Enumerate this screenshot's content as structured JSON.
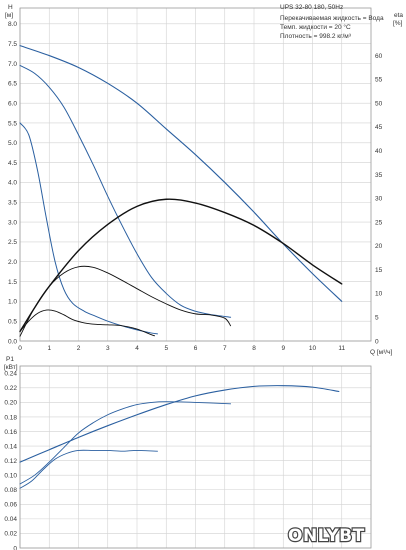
{
  "chart_data": [
    {
      "type": "line",
      "title": "UPS 32-80 180, 50Hz",
      "info_lines": [
        "Перекачиваемая жидкость = Вода",
        "Темп. жидкости = 20 °C",
        "Плотность = 998.2 кг/м³"
      ],
      "y_label_line1": "H",
      "y_label_line2": "[м]",
      "y2_label_line1": "eta",
      "y2_label_line2": "[%]",
      "x_label": "Q [м³/ч]",
      "xlim": [
        0,
        12
      ],
      "ylim": [
        0,
        8.4
      ],
      "y2lim": [
        0,
        70
      ],
      "x_ticks": [
        "0",
        "1",
        "2",
        "3",
        "4",
        "5",
        "6",
        "7",
        "8",
        "9",
        "10",
        "11"
      ],
      "y_ticks": [
        "0.0",
        "0.5",
        "1.0",
        "1.5",
        "2.0",
        "2.5",
        "3.0",
        "3.5",
        "4.0",
        "4.5",
        "5.0",
        "5.5",
        "6.0",
        "6.5",
        "7.0",
        "7.5",
        "8.0"
      ],
      "y2_ticks": [
        "0",
        "5",
        "10",
        "15",
        "20",
        "25",
        "30",
        "35",
        "40",
        "45",
        "50",
        "55",
        "60"
      ],
      "series": [
        {
          "axis": "H",
          "color": "#2a5fa0",
          "width": 1.1,
          "points": [
            [
              0,
              7.45
            ],
            [
              1,
              7.2
            ],
            [
              2,
              6.9
            ],
            [
              3,
              6.5
            ],
            [
              4,
              6.0
            ],
            [
              5,
              5.35
            ],
            [
              6,
              4.7
            ],
            [
              7,
              4.0
            ],
            [
              8,
              3.25
            ],
            [
              9,
              2.45
            ],
            [
              10,
              1.7
            ],
            [
              11,
              1.0
            ]
          ]
        },
        {
          "axis": "H",
          "color": "#2a5fa0",
          "width": 1.0,
          "points": [
            [
              0,
              6.95
            ],
            [
              0.5,
              6.75
            ],
            [
              1,
              6.4
            ],
            [
              1.5,
              5.9
            ],
            [
              2,
              5.2
            ],
            [
              2.5,
              4.45
            ],
            [
              3,
              3.65
            ],
            [
              3.5,
              2.9
            ],
            [
              4,
              2.2
            ],
            [
              4.5,
              1.6
            ],
            [
              5,
              1.2
            ],
            [
              5.5,
              0.9
            ],
            [
              6,
              0.75
            ],
            [
              6.5,
              0.67
            ],
            [
              7.2,
              0.6
            ]
          ]
        },
        {
          "axis": "H",
          "color": "#2a5fa0",
          "width": 1.0,
          "points": [
            [
              0,
              5.5
            ],
            [
              0.3,
              5.2
            ],
            [
              0.6,
              4.3
            ],
            [
              0.9,
              3.1
            ],
            [
              1.2,
              2.0
            ],
            [
              1.5,
              1.3
            ],
            [
              1.8,
              0.95
            ],
            [
              2.2,
              0.75
            ],
            [
              2.6,
              0.62
            ],
            [
              3,
              0.5
            ],
            [
              3.5,
              0.38
            ],
            [
              4,
              0.28
            ],
            [
              4.5,
              0.2
            ],
            [
              4.7,
              0.18
            ]
          ]
        },
        {
          "axis": "eta",
          "color": "#111111",
          "width": 1.4,
          "points": [
            [
              0,
              2
            ],
            [
              0.5,
              7
            ],
            [
              1,
              11.5
            ],
            [
              2,
              19
            ],
            [
              3,
              24.5
            ],
            [
              4,
              28.3
            ],
            [
              5,
              29.8
            ],
            [
              6,
              29
            ],
            [
              7,
              27
            ],
            [
              8,
              24.3
            ],
            [
              9,
              20.5
            ],
            [
              10,
              16
            ],
            [
              11,
              12
            ]
          ]
        },
        {
          "axis": "eta",
          "color": "#111111",
          "width": 0.9,
          "points": [
            [
              0,
              1
            ],
            [
              0.5,
              7
            ],
            [
              1,
              11.5
            ],
            [
              1.5,
              14.3
            ],
            [
              2,
              15.6
            ],
            [
              2.5,
              15.5
            ],
            [
              3,
              14.3
            ],
            [
              3.5,
              12.7
            ],
            [
              4,
              11
            ],
            [
              4.5,
              9.3
            ],
            [
              5,
              7.8
            ],
            [
              5.5,
              6.5
            ],
            [
              6,
              5.7
            ],
            [
              6.5,
              5.5
            ],
            [
              7,
              4.8
            ],
            [
              7.2,
              3.2
            ]
          ]
        },
        {
          "axis": "eta",
          "color": "#111111",
          "width": 0.9,
          "points": [
            [
              0,
              2
            ],
            [
              0.3,
              4.2
            ],
            [
              0.6,
              5.8
            ],
            [
              0.9,
              6.5
            ],
            [
              1.2,
              6.3
            ],
            [
              1.5,
              5.5
            ],
            [
              1.8,
              4.5
            ],
            [
              2.2,
              3.8
            ],
            [
              2.6,
              3.5
            ],
            [
              3,
              3.4
            ],
            [
              3.5,
              3.2
            ],
            [
              4,
              2.5
            ],
            [
              4.5,
              1.3
            ],
            [
              4.6,
              1.1
            ]
          ]
        }
      ]
    },
    {
      "type": "line",
      "y_label_line1": "P1",
      "y_label_line2": "[кВт]",
      "xlim": [
        0,
        12
      ],
      "ylim": [
        0,
        0.25
      ],
      "y_ticks": [
        "0",
        "0.02",
        "0.04",
        "0.06",
        "0.08",
        "0.10",
        "0.12",
        "0.14",
        "0.16",
        "0.18",
        "0.20",
        "0.22",
        "0.24"
      ],
      "series": [
        {
          "color": "#2a5fa0",
          "width": 1.1,
          "points": [
            [
              0,
              0.118
            ],
            [
              1,
              0.135
            ],
            [
              2,
              0.152
            ],
            [
              3,
              0.168
            ],
            [
              4,
              0.183
            ],
            [
              5,
              0.197
            ],
            [
              6,
              0.209
            ],
            [
              7,
              0.217
            ],
            [
              8,
              0.222
            ],
            [
              9,
              0.223
            ],
            [
              10,
              0.221
            ],
            [
              10.9,
              0.215
            ]
          ]
        },
        {
          "color": "#2a5fa0",
          "width": 0.9,
          "points": [
            [
              0,
              0.088
            ],
            [
              0.5,
              0.1
            ],
            [
              1,
              0.118
            ],
            [
              1.5,
              0.138
            ],
            [
              2,
              0.158
            ],
            [
              2.5,
              0.172
            ],
            [
              3,
              0.183
            ],
            [
              3.5,
              0.191
            ],
            [
              4,
              0.197
            ],
            [
              4.5,
              0.2
            ],
            [
              5,
              0.201
            ],
            [
              6,
              0.2
            ],
            [
              7.2,
              0.198
            ]
          ]
        },
        {
          "color": "#2a5fa0",
          "width": 0.9,
          "points": [
            [
              0,
              0.082
            ],
            [
              0.4,
              0.092
            ],
            [
              0.8,
              0.108
            ],
            [
              1.2,
              0.122
            ],
            [
              1.6,
              0.13
            ],
            [
              2,
              0.134
            ],
            [
              2.5,
              0.134
            ],
            [
              3,
              0.134
            ],
            [
              3.5,
              0.133
            ],
            [
              4,
              0.134
            ],
            [
              4.7,
              0.133
            ]
          ]
        }
      ]
    }
  ],
  "watermark": {
    "text": "ONLYBT"
  }
}
